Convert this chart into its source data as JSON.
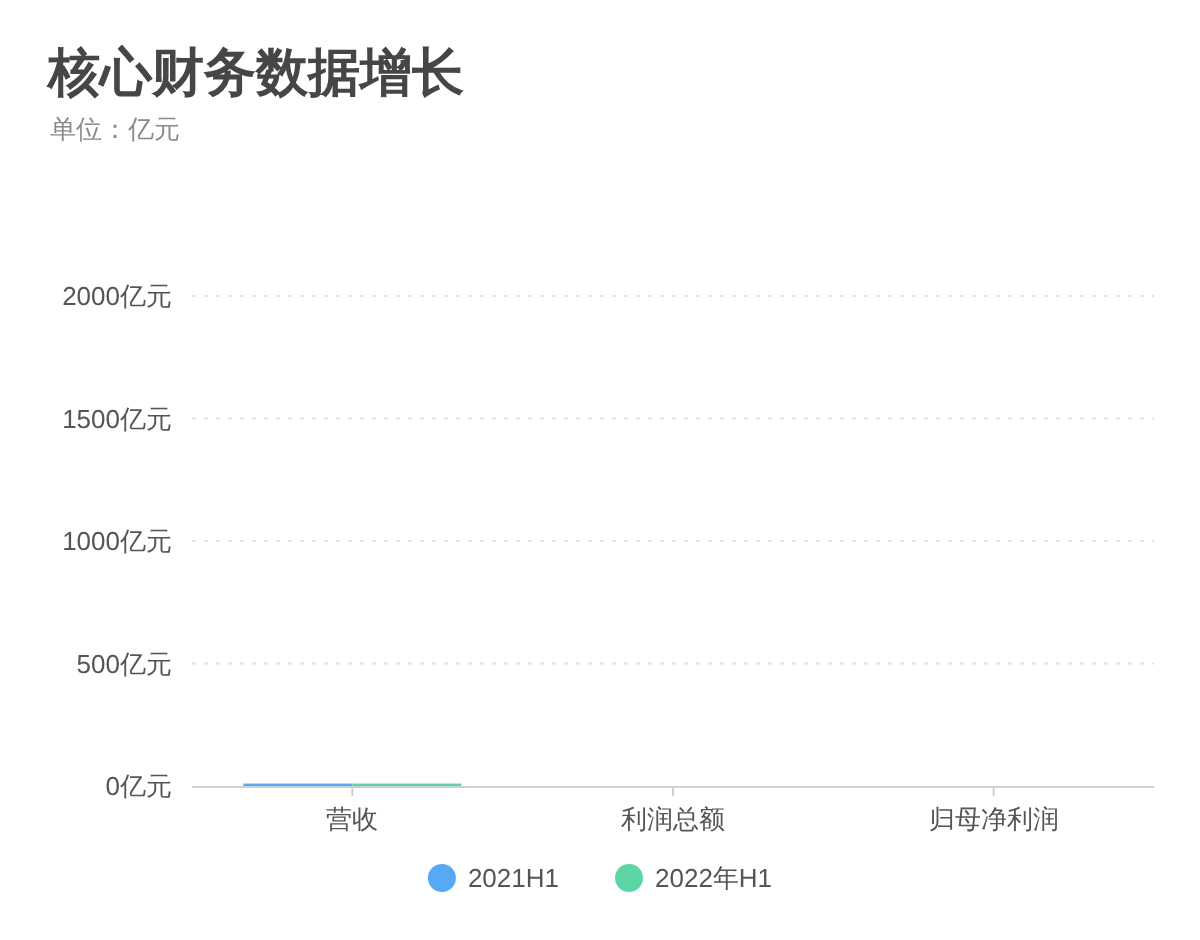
{
  "chart_data": {
    "type": "bar",
    "title": "核心财务数据增长",
    "subtitle": "单位：亿元",
    "categories": [
      "营收",
      "利润总额",
      "归母净利润"
    ],
    "series": [
      {
        "name": "2021H1",
        "color": "#58a9f4",
        "values": [
          10,
          null,
          null
        ]
      },
      {
        "name": "2022年H1",
        "color": "#5dd5a5",
        "values": [
          10,
          null,
          null
        ]
      }
    ],
    "ylim": [
      0,
      2000
    ],
    "yticks": [
      {
        "value": 0,
        "label": "0亿元"
      },
      {
        "value": 500,
        "label": "500亿元"
      },
      {
        "value": 1000,
        "label": "1000亿元"
      },
      {
        "value": 1500,
        "label": "1500亿元"
      },
      {
        "value": 2000,
        "label": "2000亿元"
      }
    ],
    "grid": "y",
    "legend": "bottom"
  }
}
